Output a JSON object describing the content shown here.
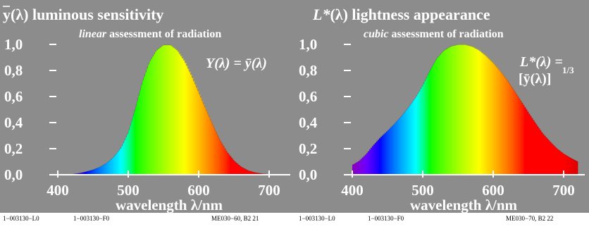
{
  "chart_data": [
    {
      "type": "area",
      "title_sym": "y",
      "title_rest": "(λ) luminous sensitivity",
      "subtitle_em": "linear",
      "subtitle_rest": " assessment of radiation",
      "formula": "Y(λ) = ȳ(λ)",
      "xlabel": "wavelength λ/nm",
      "xticks": [
        "400",
        "500",
        "600",
        "700"
      ],
      "yticks": [
        "0,0",
        "0,2",
        "0,4",
        "0,6",
        "0,8",
        "1,0"
      ],
      "xlim": [
        380,
        720
      ],
      "ylim": [
        0,
        1
      ],
      "x": [
        380,
        390,
        400,
        410,
        420,
        430,
        440,
        450,
        460,
        470,
        480,
        490,
        500,
        510,
        520,
        530,
        540,
        550,
        560,
        570,
        580,
        590,
        600,
        610,
        620,
        630,
        640,
        650,
        660,
        670,
        680,
        690,
        700,
        710,
        720
      ],
      "values": [
        0.0,
        0.0001,
        0.0004,
        0.0012,
        0.004,
        0.0116,
        0.023,
        0.038,
        0.06,
        0.091,
        0.139,
        0.208,
        0.323,
        0.503,
        0.71,
        0.862,
        0.954,
        0.995,
        0.995,
        0.952,
        0.87,
        0.757,
        0.631,
        0.503,
        0.381,
        0.265,
        0.175,
        0.107,
        0.061,
        0.032,
        0.017,
        0.0082,
        0.0041,
        0.0021,
        0.001
      ]
    },
    {
      "type": "area",
      "title_sym": "L*",
      "title_rest": "(λ) lightness appearance",
      "subtitle_em": "cubic",
      "subtitle_rest": " assessment of radiation",
      "formula_line1": "L*(λ) =",
      "formula_line2": "[ȳ(λ)]",
      "formula_exp": "1/3",
      "xlabel": "wavelength λ/nm",
      "xticks": [
        "400",
        "500",
        "600",
        "700"
      ],
      "yticks": [
        "0,0",
        "0,2",
        "0,4",
        "0,6",
        "0,8",
        "1,0"
      ],
      "xlim": [
        380,
        720
      ],
      "ylim": [
        0,
        1
      ],
      "x": [
        380,
        390,
        400,
        410,
        420,
        430,
        440,
        450,
        460,
        470,
        480,
        490,
        500,
        510,
        520,
        530,
        540,
        550,
        560,
        570,
        580,
        590,
        600,
        610,
        620,
        630,
        640,
        650,
        660,
        670,
        680,
        690,
        700,
        710,
        720
      ],
      "values": [
        0.05,
        0.06,
        0.074,
        0.106,
        0.159,
        0.226,
        0.285,
        0.336,
        0.391,
        0.45,
        0.518,
        0.593,
        0.686,
        0.795,
        0.892,
        0.952,
        0.985,
        0.998,
        0.998,
        0.984,
        0.955,
        0.911,
        0.858,
        0.795,
        0.725,
        0.642,
        0.559,
        0.475,
        0.394,
        0.317,
        0.257,
        0.202,
        0.16,
        0.128,
        0.1
      ]
    }
  ],
  "footers": {
    "left": [
      "1−003130−L0",
      "1−003130−F0",
      "ME030−60, B2  21"
    ],
    "right": [
      "1−003130−L0",
      "1−003130−F0",
      "ME030−70, B2  22"
    ]
  },
  "colors": {
    "panel_bg": "#8c8c8c",
    "text": "#ffffff",
    "footer_text": "#000000"
  }
}
